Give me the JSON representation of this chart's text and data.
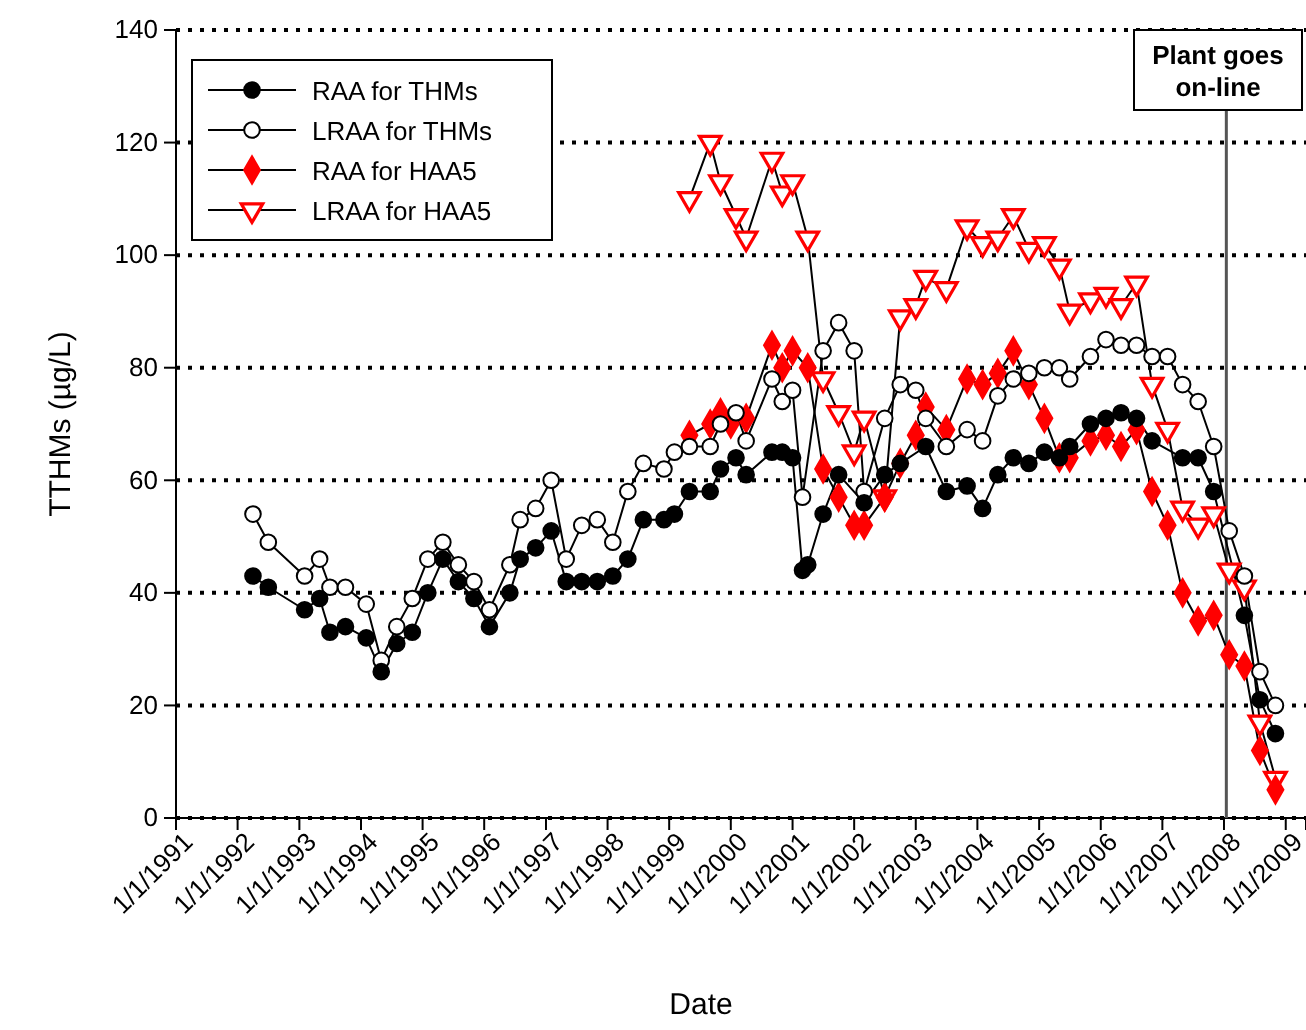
{
  "chart_data": {
    "type": "line",
    "xlabel": "Date",
    "ylabel": "TTHMs (µg/L)",
    "xlim": [
      "1991-01-01",
      "2009-05-01"
    ],
    "xticks": [
      {
        "value": "1991-01-01",
        "label": "1/1/1991"
      },
      {
        "value": "1992-01-01",
        "label": "1/1/1992"
      },
      {
        "value": "1993-01-01",
        "label": "1/1/1993"
      },
      {
        "value": "1994-01-01",
        "label": "1/1/1994"
      },
      {
        "value": "1995-01-01",
        "label": "1/1/1995"
      },
      {
        "value": "1996-01-01",
        "label": "1/1/1996"
      },
      {
        "value": "1997-01-01",
        "label": "1/1/1997"
      },
      {
        "value": "1998-01-01",
        "label": "1/1/1998"
      },
      {
        "value": "1999-01-01",
        "label": "1/1/1999"
      },
      {
        "value": "2000-01-01",
        "label": "1/1/2000"
      },
      {
        "value": "2001-01-01",
        "label": "1/1/2001"
      },
      {
        "value": "2002-01-01",
        "label": "1/1/2002"
      },
      {
        "value": "2003-01-01",
        "label": "1/1/2003"
      },
      {
        "value": "2004-01-01",
        "label": "1/1/2004"
      },
      {
        "value": "2005-01-01",
        "label": "1/1/2005"
      },
      {
        "value": "2006-01-01",
        "label": "1/1/2006"
      },
      {
        "value": "2007-01-01",
        "label": "1/1/2007"
      },
      {
        "value": "2008-01-01",
        "label": "1/1/2008"
      },
      {
        "value": "2009-01-01",
        "label": "1/1/2009"
      }
    ],
    "ylim": [
      0,
      140
    ],
    "yticks": [
      0,
      20,
      40,
      60,
      80,
      100,
      120,
      140
    ],
    "grid": "y",
    "legend": "top left",
    "line_style": "solid",
    "ref_lines": [
      {
        "axis": "x",
        "value": "2008-01-15",
        "label": "Plant goes on-line",
        "color": "#555555"
      }
    ],
    "series": [
      {
        "name": "RAA  for THMs",
        "color": "#000000",
        "marker": "circle",
        "x": [
          "1992-04",
          "1992-07",
          "1993-02",
          "1993-05",
          "1993-07",
          "1993-10",
          "1994-02",
          "1994-05",
          "1994-08",
          "1994-11",
          "1995-02",
          "1995-05",
          "1995-08",
          "1995-11",
          "1996-02",
          "1996-06",
          "1996-08",
          "1996-11",
          "1997-02",
          "1997-05",
          "1997-08",
          "1997-11",
          "1998-02",
          "1998-05",
          "1998-08",
          "1998-12",
          "1999-02",
          "1999-05",
          "1999-09",
          "1999-11",
          "2000-02",
          "2000-04",
          "2000-09",
          "2000-11",
          "2001-01",
          "2001-03",
          "2001-04",
          "2001-07",
          "2001-10",
          "2002-03",
          "2002-07",
          "2002-10",
          "2003-03",
          "2003-07",
          "2003-11",
          "2004-02",
          "2004-05",
          "2004-08",
          "2004-11",
          "2005-02",
          "2005-05",
          "2005-07",
          "2005-11",
          "2006-02",
          "2006-05",
          "2006-08",
          "2006-11",
          "2007-05",
          "2007-08",
          "2007-11",
          "2008-05",
          "2008-08",
          "2008-11"
        ],
        "values": [
          43,
          41,
          37,
          39,
          33,
          34,
          32,
          26,
          31,
          33,
          40,
          46,
          42,
          39,
          34,
          40,
          46,
          48,
          51,
          42,
          42,
          42,
          43,
          46,
          53,
          53,
          54,
          58,
          58,
          62,
          64,
          61,
          65,
          65,
          64,
          44,
          45,
          54,
          61,
          56,
          61,
          63,
          66,
          58,
          59,
          55,
          61,
          64,
          63,
          65,
          64,
          66,
          70,
          71,
          72,
          71,
          67,
          64,
          64,
          58,
          36,
          21,
          15
        ]
      },
      {
        "name": "LRAA for THMs",
        "color": "#000000",
        "marker": "circle",
        "x": [
          "1992-04",
          "1992-07",
          "1993-02",
          "1993-05",
          "1993-07",
          "1993-10",
          "1994-02",
          "1994-05",
          "1994-08",
          "1994-11",
          "1995-02",
          "1995-05",
          "1995-08",
          "1995-11",
          "1996-02",
          "1996-06",
          "1996-08",
          "1996-11",
          "1997-02",
          "1997-05",
          "1997-08",
          "1997-11",
          "1998-02",
          "1998-05",
          "1998-08",
          "1998-12",
          "1999-02",
          "1999-05",
          "1999-09",
          "1999-11",
          "2000-02",
          "2000-04",
          "2000-09",
          "2000-11",
          "2001-01",
          "2001-03",
          "2001-07",
          "2001-10",
          "2002-01",
          "2002-03",
          "2002-07",
          "2002-10",
          "2003-01",
          "2003-03",
          "2003-07",
          "2003-11",
          "2004-02",
          "2004-05",
          "2004-08",
          "2004-11",
          "2005-02",
          "2005-05",
          "2005-07",
          "2005-11",
          "2006-02",
          "2006-05",
          "2006-08",
          "2006-11",
          "2007-02",
          "2007-05",
          "2007-08",
          "2007-11",
          "2008-02",
          "2008-05",
          "2008-08",
          "2008-11"
        ],
        "values": [
          54,
          49,
          43,
          46,
          41,
          41,
          38,
          28,
          34,
          39,
          46,
          49,
          45,
          42,
          37,
          45,
          53,
          55,
          60,
          46,
          52,
          53,
          49,
          58,
          63,
          62,
          65,
          66,
          66,
          70,
          72,
          67,
          78,
          74,
          76,
          57,
          83,
          88,
          83,
          58,
          71,
          77,
          76,
          71,
          66,
          69,
          67,
          75,
          78,
          79,
          80,
          80,
          78,
          82,
          85,
          84,
          84,
          82,
          82,
          77,
          74,
          66,
          51,
          43,
          26,
          20
        ]
      },
      {
        "name": "RAA for HAA5",
        "color": "#ff0000",
        "marker": "diamond",
        "x": [
          "1999-05",
          "1999-09",
          "1999-11",
          "2000-01",
          "2000-04",
          "2000-09",
          "2000-11",
          "2001-01",
          "2001-04",
          "2001-07",
          "2001-10",
          "2002-01",
          "2002-03",
          "2002-07",
          "2002-10",
          "2003-01",
          "2003-03",
          "2003-07",
          "2003-11",
          "2004-02",
          "2004-05",
          "2004-08",
          "2004-11",
          "2005-02",
          "2005-05",
          "2005-07",
          "2005-11",
          "2006-02",
          "2006-05",
          "2006-08",
          "2006-11",
          "2007-02",
          "2007-05",
          "2007-08",
          "2007-11",
          "2008-02",
          "2008-05",
          "2008-08",
          "2008-11"
        ],
        "values": [
          68,
          70,
          72,
          70,
          71,
          84,
          80,
          83,
          80,
          62,
          57,
          52,
          52,
          57,
          63,
          68,
          73,
          69,
          78,
          77,
          79,
          83,
          77,
          71,
          64,
          64,
          67,
          68,
          66,
          69,
          58,
          52,
          40,
          35,
          36,
          29,
          27,
          12,
          5
        ]
      },
      {
        "name": "LRAA for HAA5",
        "color": "#ff0000",
        "marker": "triangle",
        "x": [
          "1999-05",
          "1999-09",
          "1999-11",
          "2000-02",
          "2000-04",
          "2000-09",
          "2000-11",
          "2001-01",
          "2001-04",
          "2001-07",
          "2001-10",
          "2002-01",
          "2002-03",
          "2002-07",
          "2002-10",
          "2003-01",
          "2003-03",
          "2003-07",
          "2003-11",
          "2004-02",
          "2004-05",
          "2004-08",
          "2004-11",
          "2005-02",
          "2005-05",
          "2005-07",
          "2005-11",
          "2006-02",
          "2006-05",
          "2006-08",
          "2006-11",
          "2007-02",
          "2007-05",
          "2007-08",
          "2007-11",
          "2008-02",
          "2008-05",
          "2008-08",
          "2008-11"
        ],
        "values": [
          110,
          120,
          113,
          107,
          103,
          117,
          111,
          113,
          103,
          78,
          72,
          65,
          71,
          57,
          89,
          91,
          96,
          94,
          105,
          102,
          103,
          107,
          101,
          102,
          98,
          90,
          92,
          93,
          91,
          95,
          77,
          69,
          55,
          52,
          54,
          44,
          41,
          17,
          7
        ]
      }
    ]
  }
}
